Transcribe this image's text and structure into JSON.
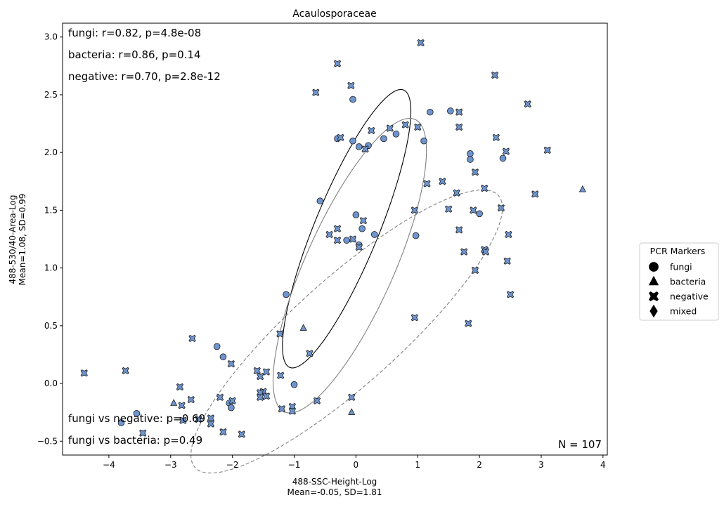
{
  "chart_data": {
    "type": "scatter",
    "title": "Acaulosporaceae",
    "xlabel": "488-SSC-Height-Log",
    "xlabel_sub": "Mean=-0.05, SD=1.81",
    "ylabel": "488-530/40-Area-Log",
    "ylabel_sub": "Mean=1.08, SD=0.99",
    "xlim": [
      -4.75,
      4.07
    ],
    "ylim": [
      -0.62,
      3.12
    ],
    "xticks": [
      -4,
      -3,
      -2,
      -1,
      0,
      1,
      2,
      3,
      4
    ],
    "yticks": [
      -0.5,
      0.0,
      0.5,
      1.0,
      1.5,
      2.0,
      2.5,
      3.0
    ],
    "xtick_labels": [
      "−4",
      "−3",
      "−2",
      "−1",
      "0",
      "1",
      "2",
      "3",
      "4"
    ],
    "ytick_labels": [
      "−0.5",
      "0.0",
      "0.5",
      "1.0",
      "1.5",
      "2.0",
      "2.5",
      "3.0"
    ],
    "grid": false,
    "marker_color": "#6f95cf",
    "marker_edge": "#1a1a1a",
    "stats_top": [
      "fungi: r=0.82, p=4.8e-08",
      "bacteria: r=0.86, p=0.14",
      "negative: r=0.70, p=2.8e-12"
    ],
    "stats_bottom": [
      "fungi vs negative: p=0.69",
      "fungi vs bacteria: p=0.49"
    ],
    "n_label": "N = 107",
    "legend": {
      "title": "PCR Markers",
      "placement": "outside-right",
      "entries": [
        {
          "label": "fungi",
          "marker": "circle"
        },
        {
          "label": "bacteria",
          "marker": "triangle"
        },
        {
          "label": "negative",
          "marker": "x"
        },
        {
          "label": "mixed",
          "marker": "diamond"
        }
      ]
    },
    "ellipses": [
      {
        "group": "fungi",
        "cx": -0.15,
        "cy": 1.34,
        "rx": 1.53,
        "ry": 0.44,
        "angle_deg": 50,
        "stroke": "#000000",
        "dash": false
      },
      {
        "group": "bacteria",
        "cx": -0.1,
        "cy": 1.02,
        "rx": 1.68,
        "ry": 0.59,
        "angle_deg": 46,
        "stroke": "#808080",
        "dash": false
      },
      {
        "group": "negative",
        "cx": -0.15,
        "cy": 0.45,
        "rx": 2.75,
        "ry": 0.55,
        "angle_deg": 24,
        "stroke": "#808080",
        "dash": true
      }
    ],
    "series": [
      {
        "name": "fungi",
        "marker": "circle",
        "points": [
          [
            -0.05,
            2.46
          ],
          [
            0.2,
            2.06
          ],
          [
            -0.3,
            2.12
          ],
          [
            1.2,
            2.35
          ],
          [
            1.53,
            2.36
          ],
          [
            0.45,
            2.12
          ],
          [
            0.65,
            2.16
          ],
          [
            1.1,
            2.1
          ],
          [
            -0.05,
            2.1
          ],
          [
            0.05,
            2.05
          ],
          [
            1.85,
            1.99
          ],
          [
            1.85,
            1.94
          ],
          [
            2.38,
            1.95
          ],
          [
            -0.58,
            1.58
          ],
          [
            2.0,
            1.47
          ],
          [
            0.0,
            1.46
          ],
          [
            0.1,
            1.34
          ],
          [
            0.3,
            1.29
          ],
          [
            0.97,
            1.28
          ],
          [
            -0.15,
            1.24
          ],
          [
            0.05,
            1.2
          ],
          [
            -1.13,
            0.77
          ],
          [
            -2.25,
            0.32
          ],
          [
            -2.15,
            0.23
          ],
          [
            -2.05,
            -0.17
          ],
          [
            -2.02,
            -0.21
          ],
          [
            -1.0,
            -0.01
          ],
          [
            -3.55,
            -0.26
          ],
          [
            -3.8,
            -0.34
          ]
        ]
      },
      {
        "name": "bacteria",
        "marker": "triangle",
        "points": [
          [
            3.67,
            1.68
          ],
          [
            -0.85,
            0.48
          ],
          [
            -2.95,
            -0.17
          ],
          [
            -0.07,
            -0.25
          ]
        ]
      },
      {
        "name": "negative",
        "marker": "x",
        "points": [
          [
            1.05,
            2.95
          ],
          [
            -0.3,
            2.77
          ],
          [
            2.25,
            2.67
          ],
          [
            -0.65,
            2.52
          ],
          [
            -0.08,
            2.58
          ],
          [
            2.78,
            2.42
          ],
          [
            1.67,
            2.35
          ],
          [
            0.55,
            2.21
          ],
          [
            0.8,
            2.24
          ],
          [
            1.0,
            2.22
          ],
          [
            1.67,
            2.22
          ],
          [
            2.27,
            2.13
          ],
          [
            -0.25,
            2.13
          ],
          [
            0.25,
            2.19
          ],
          [
            0.15,
            2.03
          ],
          [
            2.43,
            2.01
          ],
          [
            3.1,
            2.02
          ],
          [
            1.93,
            1.83
          ],
          [
            1.4,
            1.75
          ],
          [
            1.15,
            1.73
          ],
          [
            2.08,
            1.69
          ],
          [
            1.63,
            1.65
          ],
          [
            2.9,
            1.64
          ],
          [
            2.35,
            1.52
          ],
          [
            1.5,
            1.51
          ],
          [
            1.9,
            1.5
          ],
          [
            0.95,
            1.5
          ],
          [
            0.12,
            1.41
          ],
          [
            2.47,
            1.29
          ],
          [
            1.67,
            1.33
          ],
          [
            -0.3,
            1.34
          ],
          [
            -0.43,
            1.29
          ],
          [
            -0.05,
            1.25
          ],
          [
            -0.3,
            1.24
          ],
          [
            0.05,
            1.18
          ],
          [
            2.08,
            1.16
          ],
          [
            2.1,
            1.14
          ],
          [
            1.75,
            1.14
          ],
          [
            2.45,
            1.06
          ],
          [
            1.93,
            0.98
          ],
          [
            2.5,
            0.77
          ],
          [
            0.95,
            0.57
          ],
          [
            1.82,
            0.52
          ],
          [
            -1.23,
            0.43
          ],
          [
            -0.75,
            0.26
          ],
          [
            -2.65,
            0.39
          ],
          [
            -4.4,
            0.09
          ],
          [
            -3.73,
            0.11
          ],
          [
            -2.02,
            0.17
          ],
          [
            -1.6,
            0.11
          ],
          [
            -1.45,
            0.1
          ],
          [
            -1.22,
            0.07
          ],
          [
            -1.55,
            0.06
          ],
          [
            -2.85,
            -0.03
          ],
          [
            -1.5,
            -0.07
          ],
          [
            -1.55,
            -0.08
          ],
          [
            -1.55,
            -0.12
          ],
          [
            -2.2,
            -0.12
          ],
          [
            -1.45,
            -0.11
          ],
          [
            -0.07,
            -0.12
          ],
          [
            -0.63,
            -0.15
          ],
          [
            -2.67,
            -0.14
          ],
          [
            -2.0,
            -0.15
          ],
          [
            -2.82,
            -0.19
          ],
          [
            -1.2,
            -0.22
          ],
          [
            -1.03,
            -0.2
          ],
          [
            -1.03,
            -0.24
          ],
          [
            -2.55,
            -0.31
          ],
          [
            -2.35,
            -0.3
          ],
          [
            -2.35,
            -0.35
          ],
          [
            -2.8,
            -0.32
          ],
          [
            -2.15,
            -0.42
          ],
          [
            -1.85,
            -0.44
          ],
          [
            -3.45,
            -0.43
          ]
        ]
      },
      {
        "name": "mixed",
        "marker": "diamond",
        "points": []
      }
    ]
  }
}
